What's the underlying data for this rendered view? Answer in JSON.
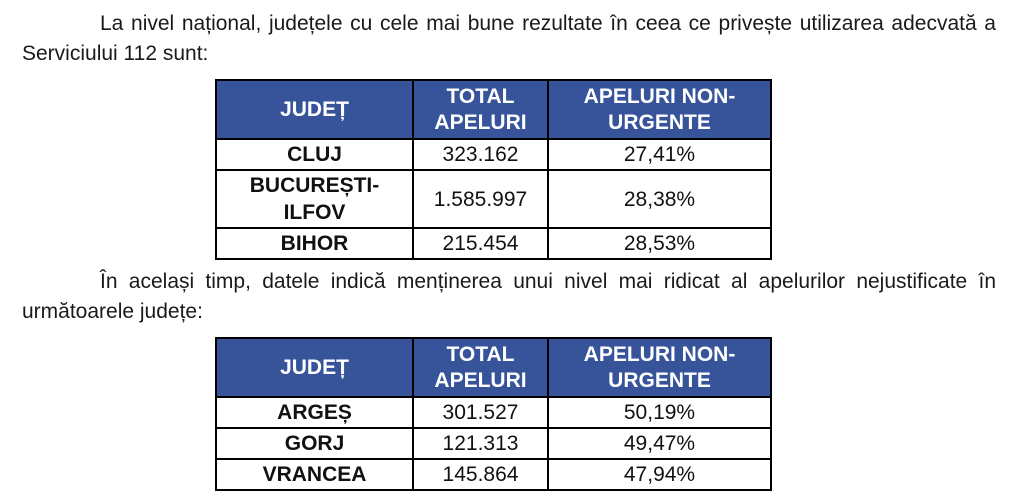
{
  "document": {
    "paragraphs": [
      "La nivel național, județele cu cele mai bune rezultate în ceea ce privește utilizarea adecvată a Serviciului 112 sunt:",
      "În același timp, datele indică menținerea unui nivel mai ridicat al apelurilor nejustificate în următoarele județe:"
    ]
  },
  "colors": {
    "table_header_bg": "#37549b",
    "table_header_text": "#ffffff",
    "table_border": "#000000",
    "body_text": "#1a1a1a"
  },
  "tables": [
    {
      "name": "best-performing-counties",
      "headers": [
        "JUDEȚ",
        "TOTAL APELURI",
        "APELURI NON-URGENTE"
      ],
      "rows": [
        {
          "judet": "CLUJ",
          "total_apeluri": "323.162",
          "apeluri_non_urgente": "27,41%"
        },
        {
          "judet": "BUCUREȘTI-ILFOV",
          "total_apeluri": "1.585.997",
          "apeluri_non_urgente": "28,38%"
        },
        {
          "judet": "BIHOR",
          "total_apeluri": "215.454",
          "apeluri_non_urgente": "28,53%"
        }
      ]
    },
    {
      "name": "highest-unjustified-call-counties",
      "headers": [
        "JUDEȚ",
        "TOTAL APELURI",
        "APELURI NON-URGENTE"
      ],
      "rows": [
        {
          "judet": "ARGEȘ",
          "total_apeluri": "301.527",
          "apeluri_non_urgente": "50,19%"
        },
        {
          "judet": "GORJ",
          "total_apeluri": "121.313",
          "apeluri_non_urgente": "49,47%"
        },
        {
          "judet": "VRANCEA",
          "total_apeluri": "145.864",
          "apeluri_non_urgente": "47,94%"
        }
      ]
    }
  ]
}
